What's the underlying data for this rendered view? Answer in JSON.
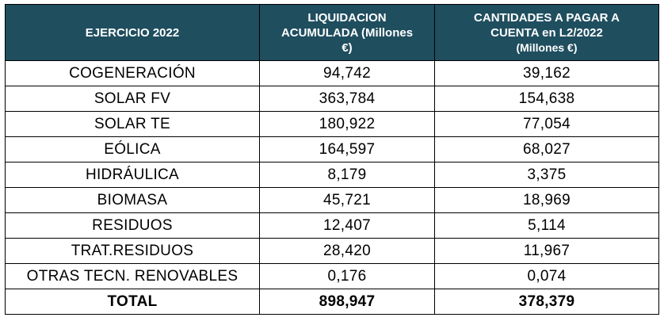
{
  "table": {
    "headers": [
      {
        "lines": [
          "EJERCICIO 2022"
        ]
      },
      {
        "lines": [
          "LIQUIDACION",
          "ACUMULADA (Millones",
          "€)"
        ]
      },
      {
        "lines": [
          "CANTIDADES A PAGAR A",
          "CUENTA en L2/2022",
          "(Millones €)"
        ]
      }
    ],
    "rows": [
      {
        "label": "COGENERACIÓN",
        "liquidacion": "94,742",
        "cantidades": "39,162"
      },
      {
        "label": "SOLAR FV",
        "liquidacion": "363,784",
        "cantidades": "154,638"
      },
      {
        "label": "SOLAR TE",
        "liquidacion": "180,922",
        "cantidades": "77,054"
      },
      {
        "label": "EÓLICA",
        "liquidacion": "164,597",
        "cantidades": "68,027"
      },
      {
        "label": "HIDRÁULICA",
        "liquidacion": "8,179",
        "cantidades": "3,375"
      },
      {
        "label": "BIOMASA",
        "liquidacion": "45,721",
        "cantidades": "18,969"
      },
      {
        "label": "RESIDUOS",
        "liquidacion": "12,407",
        "cantidades": "5,114"
      },
      {
        "label": "TRAT.RESIDUOS",
        "liquidacion": "28,420",
        "cantidades": "11,967"
      },
      {
        "label": "OTRAS TECN. RENOVABLES",
        "liquidacion": "0,176",
        "cantidades": "0,074"
      }
    ],
    "total": {
      "label": "TOTAL",
      "liquidacion": "898,947",
      "cantidades": "378,379"
    }
  },
  "colors": {
    "header_bg": "#1f4e5f",
    "header_text": "#ffffff",
    "border": "#000000"
  }
}
